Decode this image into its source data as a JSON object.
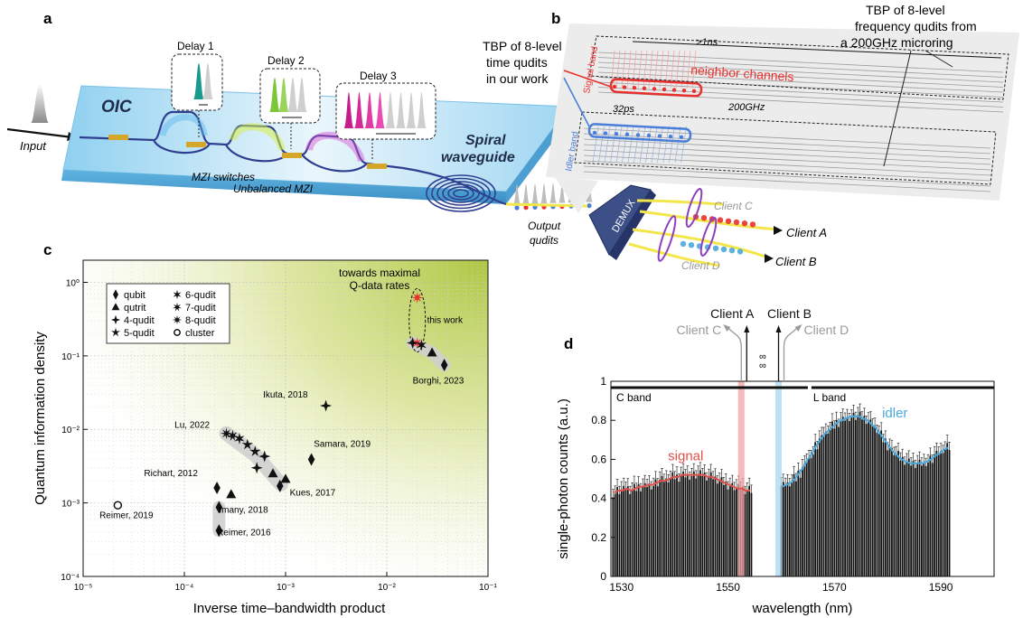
{
  "panel_a": {
    "label": "a",
    "input_label": "Input",
    "chip_label": "OIC",
    "delays": [
      "Delay 1",
      "Delay 2",
      "Delay 3"
    ],
    "mzi_switches_label": "MZI switches",
    "unbalanced_label": "Unbalanced MZI",
    "spiral_label": "Spiral waveguide",
    "output_label": "Output qudits",
    "demux_label": "DEMUX",
    "clients": [
      "Client C",
      "Client A",
      "Client D",
      "Client B"
    ]
  },
  "panel_b": {
    "label": "b",
    "tbp_time_label": "TBP of 8-level time qudits in our work",
    "tbp_freq_label": "TBP of 8-level frequency qudits from a 200GHz microring",
    "signal_band": "Signal band",
    "idler_band": "Idler band",
    "neighbor": "neighbor channels",
    "time_span": ">1ns",
    "ghz": "200GHz",
    "ps": "32ps"
  },
  "chart_data": [
    {
      "type": "scatter",
      "panel": "c",
      "xlabel": "Inverse time–bandwidth product",
      "ylabel": "Quantum information density",
      "xscale": "log",
      "yscale": "log",
      "xlim": [
        1e-05,
        0.1
      ],
      "ylim": [
        0.0001,
        2
      ],
      "x_ticks": [
        "10⁻⁵",
        "10⁻⁴",
        "10⁻³",
        "10⁻²",
        "10⁻¹"
      ],
      "y_ticks": [
        "10⁰",
        "10⁻¹",
        "10⁻²",
        "10⁻³",
        "10⁻⁴"
      ],
      "region_label": "towards maximal Q-data rates",
      "legend": [
        {
          "marker": "diamond",
          "label": "qubit"
        },
        {
          "marker": "triangle",
          "label": "qutrit"
        },
        {
          "marker": "star4",
          "label": "4-qudit"
        },
        {
          "marker": "star5",
          "label": "5-qudit"
        },
        {
          "marker": "star6",
          "label": "6-qudit"
        },
        {
          "marker": "star7",
          "label": "7-qudit"
        },
        {
          "marker": "star8",
          "label": "8-qudit"
        },
        {
          "marker": "circle",
          "label": "cluster"
        }
      ],
      "annotations": [
        {
          "text": "this work",
          "x": 0.025,
          "y": 0.28
        },
        {
          "text": "Borghi, 2023",
          "x": 0.018,
          "y": 0.042
        },
        {
          "text": "Ikuta, 2018",
          "x": 0.0006,
          "y": 0.027
        },
        {
          "text": "Lu, 2022",
          "x": 8e-05,
          "y": 0.0105
        },
        {
          "text": "Samara, 2019",
          "x": 0.0019,
          "y": 0.0058
        },
        {
          "text": "Richart, 2012",
          "x": 4e-05,
          "y": 0.0023
        },
        {
          "text": "Kues, 2017",
          "x": 0.0011,
          "y": 0.00125
        },
        {
          "text": "Imany, 2018",
          "x": 0.00022,
          "y": 0.00073
        },
        {
          "text": "Reimer, 2019",
          "x": 1.45e-05,
          "y": 0.00062
        },
        {
          "text": "Reimer, 2016",
          "x": 0.00021,
          "y": 0.00036
        }
      ],
      "points": [
        {
          "x": 0.02,
          "y": 0.62,
          "marker": "star8",
          "color": "#e8312f"
        },
        {
          "x": 0.02,
          "y": 0.15,
          "marker": "star8",
          "color": "#e8312f"
        },
        {
          "x": 0.018,
          "y": 0.15,
          "marker": "star4",
          "color": "#111111"
        },
        {
          "x": 0.022,
          "y": 0.14,
          "marker": "star6",
          "color": "#111111"
        },
        {
          "x": 0.028,
          "y": 0.11,
          "marker": "triangle",
          "color": "#111111"
        },
        {
          "x": 0.037,
          "y": 0.075,
          "marker": "diamond",
          "color": "#111111"
        },
        {
          "x": 0.0025,
          "y": 0.021,
          "marker": "star4",
          "color": "#111111"
        },
        {
          "x": 0.00026,
          "y": 0.0088,
          "marker": "star8",
          "color": "#111111"
        },
        {
          "x": 0.0003,
          "y": 0.0082,
          "marker": "star7",
          "color": "#111111"
        },
        {
          "x": 0.00035,
          "y": 0.0075,
          "marker": "star6",
          "color": "#111111"
        },
        {
          "x": 0.00042,
          "y": 0.0062,
          "marker": "star5",
          "color": "#111111"
        },
        {
          "x": 0.0005,
          "y": 0.005,
          "marker": "star5",
          "color": "#111111"
        },
        {
          "x": 0.00062,
          "y": 0.0043,
          "marker": "star4",
          "color": "#111111"
        },
        {
          "x": 0.00052,
          "y": 0.003,
          "marker": "star4",
          "color": "#111111"
        },
        {
          "x": 0.00075,
          "y": 0.0025,
          "marker": "triangle",
          "color": "#111111"
        },
        {
          "x": 0.001,
          "y": 0.0021,
          "marker": "triangle",
          "color": "#111111"
        },
        {
          "x": 0.00088,
          "y": 0.0017,
          "marker": "diamond",
          "color": "#111111"
        },
        {
          "x": 0.0018,
          "y": 0.0039,
          "marker": "diamond",
          "color": "#111111"
        },
        {
          "x": 0.00021,
          "y": 0.0016,
          "marker": "diamond",
          "color": "#111111"
        },
        {
          "x": 0.00029,
          "y": 0.0013,
          "marker": "triangle",
          "color": "#111111"
        },
        {
          "x": 0.00022,
          "y": 0.00087,
          "marker": "diamond",
          "color": "#111111"
        },
        {
          "x": 0.00022,
          "y": 0.00042,
          "marker": "diamond",
          "color": "#111111"
        },
        {
          "x": 2.2e-05,
          "y": 0.00093,
          "marker": "circle",
          "color": "#111111"
        }
      ]
    },
    {
      "type": "bar",
      "panel": "d",
      "xlabel": "wavelength (nm)",
      "ylabel": "single-photon counts (a.u.)",
      "xlim": [
        1528,
        1600
      ],
      "ylim": [
        0,
        1
      ],
      "x_ticks": [
        "1530",
        "1550",
        "1570",
        "1590"
      ],
      "y_ticks": [
        "0",
        "0.2",
        "0.4",
        "0.6",
        "0.8",
        "1"
      ],
      "bands": [
        "C band",
        "L band"
      ],
      "band_edge_c_nm": 1565,
      "series": [
        {
          "name": "signal",
          "color": "#e0514a",
          "x_start": 1528.4,
          "step": 0.8,
          "values": [
            0.43,
            0.44,
            0.44,
            0.45,
            0.44,
            0.45,
            0.46,
            0.46,
            0.47,
            0.47,
            0.48,
            0.49,
            0.49,
            0.5,
            0.51,
            0.51,
            0.52,
            0.52,
            0.52,
            0.52,
            0.52,
            0.52,
            0.51,
            0.51,
            0.5,
            0.49,
            0.48,
            0.47,
            0.46,
            0.45,
            0.45,
            0.44,
            0.44
          ]
        },
        {
          "name": "idler",
          "color": "#4aa9dd",
          "x_start": 1560.0,
          "step": 0.8,
          "values": [
            0.46,
            0.47,
            0.48,
            0.5,
            0.53,
            0.56,
            0.6,
            0.63,
            0.67,
            0.7,
            0.73,
            0.75,
            0.77,
            0.79,
            0.8,
            0.81,
            0.82,
            0.82,
            0.82,
            0.81,
            0.8,
            0.78,
            0.76,
            0.73,
            0.7,
            0.67,
            0.64,
            0.62,
            0.6,
            0.59,
            0.58,
            0.58,
            0.58,
            0.58,
            0.59,
            0.6,
            0.62,
            0.63,
            0.65,
            0.66
          ]
        }
      ],
      "clients": [
        {
          "name": "Client A",
          "x": 1552.5,
          "color": "#111111"
        },
        {
          "name": "Client B",
          "x": 1559.5,
          "color": "#111111"
        },
        {
          "name": "Client C",
          "x": 1551.6,
          "color": "#9a9a9a"
        },
        {
          "name": "Client D",
          "x": 1560.4,
          "color": "#9a9a9a"
        }
      ],
      "colors": {
        "signal": "#e0514a",
        "idler": "#4aa9dd",
        "signal_channel": "#f4a3a3",
        "idler_channel": "#a8d8ef"
      }
    }
  ]
}
